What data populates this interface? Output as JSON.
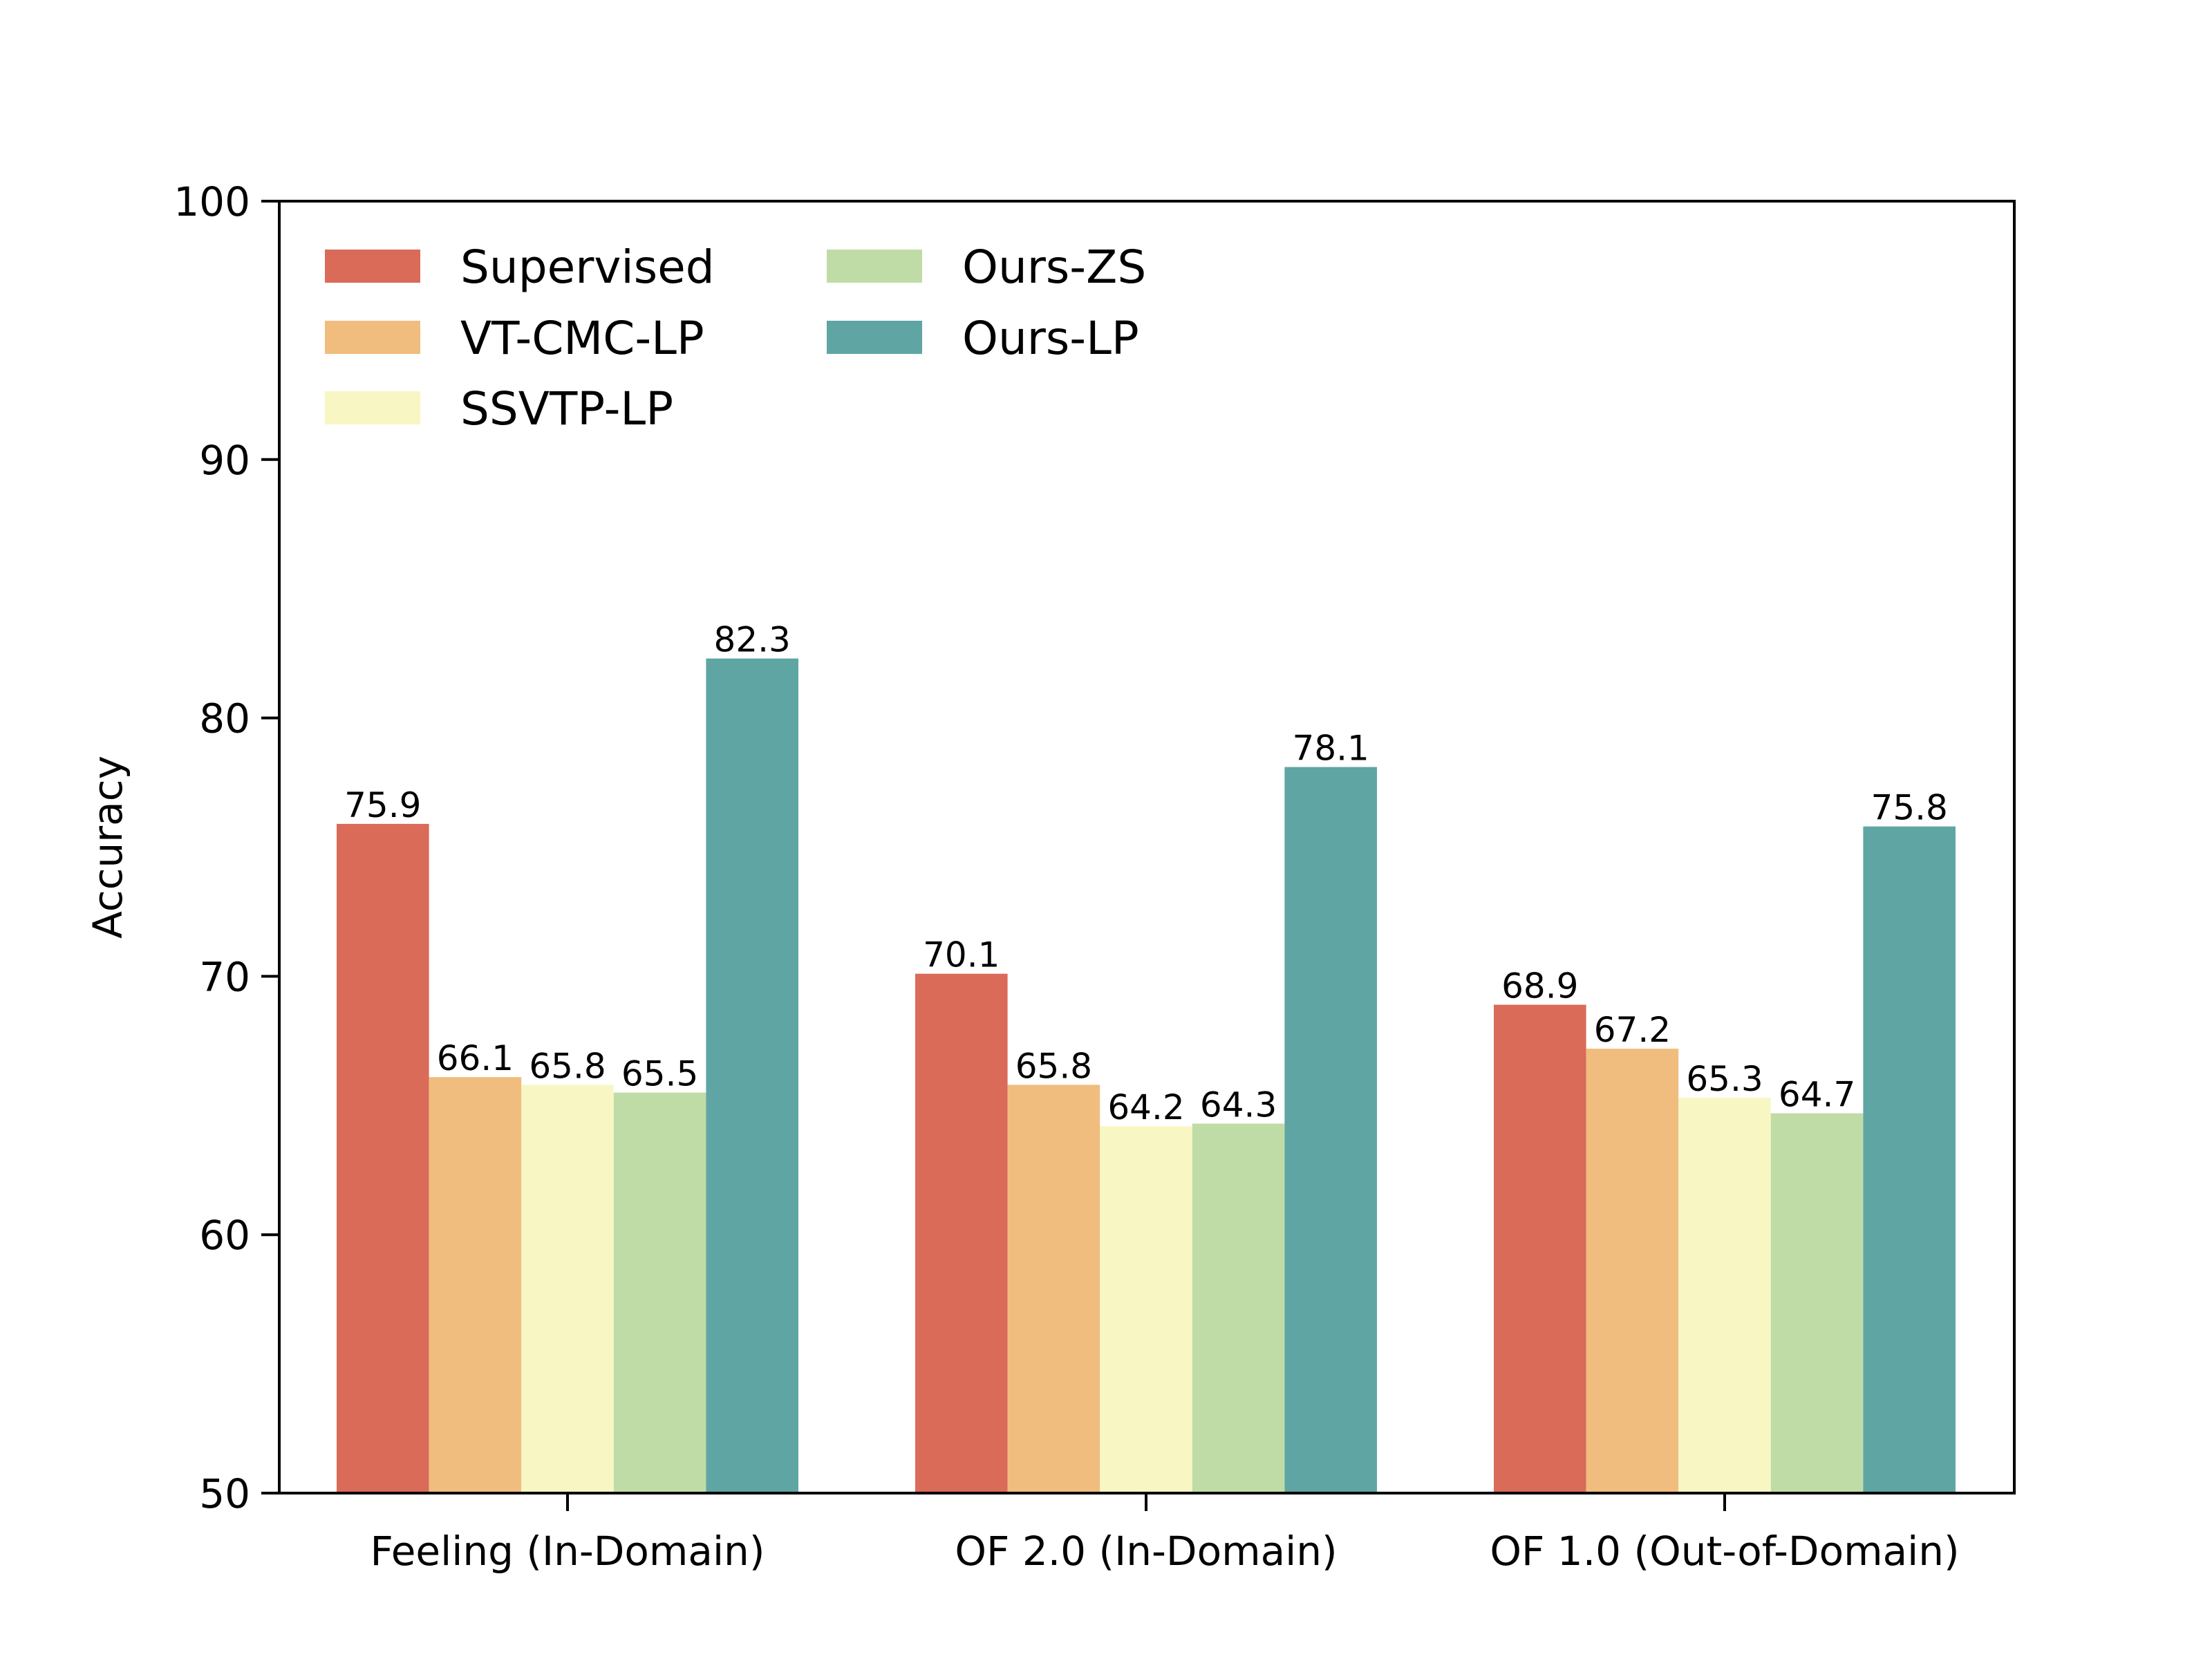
{
  "chart_data": {
    "type": "bar",
    "title": "",
    "xlabel": "",
    "ylabel": "Accuracy",
    "ylim": [
      50,
      100
    ],
    "yticks": [
      50,
      60,
      70,
      80,
      90,
      100
    ],
    "grid": false,
    "legend_position": "top-left",
    "categories": [
      "Feeling (In-Domain)",
      "OF 2.0 (In-Domain)",
      "OF 1.0 (Out-of-Domain)"
    ],
    "series": [
      {
        "name": "Supervised",
        "color": "#d96b58",
        "values": [
          75.9,
          70.1,
          68.9
        ]
      },
      {
        "name": "VT-CMC-LP",
        "color": "#f0bd7f",
        "values": [
          66.1,
          65.8,
          67.2
        ]
      },
      {
        "name": "SSVTP-LP",
        "color": "#f8f6c3",
        "values": [
          65.8,
          64.2,
          65.3
        ]
      },
      {
        "name": "Ours-ZS",
        "color": "#c0dca6",
        "values": [
          65.5,
          64.3,
          64.7
        ]
      },
      {
        "name": "Ours-LP",
        "color": "#5fa5a3",
        "values": [
          82.3,
          78.1,
          75.8
        ]
      }
    ]
  }
}
